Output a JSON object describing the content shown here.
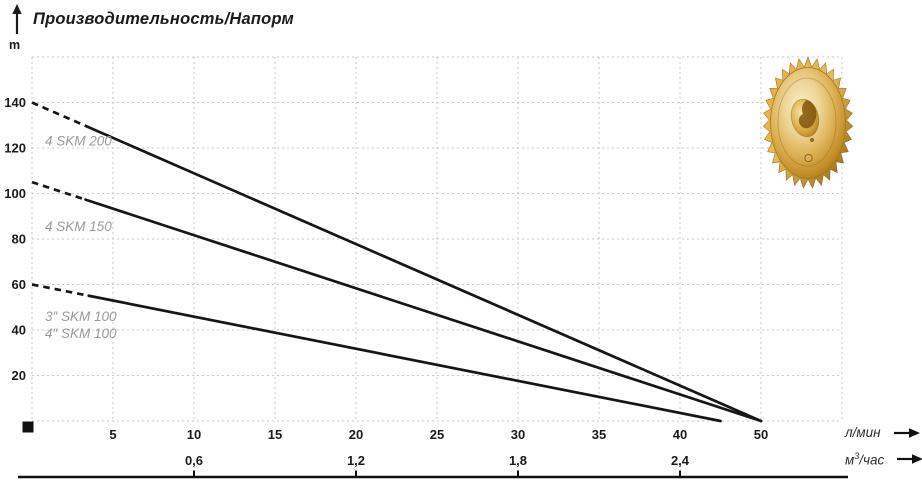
{
  "header": {
    "title": "Производительность/Напорм",
    "y_axis_unit": "m"
  },
  "units": {
    "flow_primary": "л/мин",
    "flow_secondary_base": "м",
    "flow_secondary_sup": "3",
    "flow_secondary_rest": "/час"
  },
  "chart_data": {
    "type": "line",
    "title": "Производительность/Напорм",
    "x_axis": {
      "label_primary": "л/мин",
      "label_secondary": "м³/час",
      "ticks_l_min": [
        5,
        10,
        15,
        20,
        25,
        30,
        35,
        40,
        50
      ],
      "ticks_m3_h": [
        {
          "label": "0,6",
          "at_l_min": 10
        },
        {
          "label": "1,2",
          "at_l_min": 20
        },
        {
          "label": "1,8",
          "at_l_min": 30
        },
        {
          "label": "2,4",
          "at_l_min": 40
        }
      ],
      "grid_step_l_min": 5
    },
    "y_axis": {
      "unit": "m",
      "ticks": [
        20,
        40,
        60,
        80,
        100,
        120,
        140
      ],
      "ylim": [
        0,
        160
      ],
      "grid_step": 20
    },
    "grid": "dotted",
    "legend_position": "inline-labels",
    "series": [
      {
        "name": "4 SKM 200",
        "points_l_min_m": [
          [
            0,
            140
          ],
          [
            50,
            0
          ]
        ],
        "dashed_until_l_min": 3.5
      },
      {
        "name": "4 SKM 150",
        "points_l_min_m": [
          [
            0,
            105
          ],
          [
            50,
            0
          ]
        ],
        "dashed_until_l_min": 3.3
      },
      {
        "name": "SKM 100",
        "points_l_min_m": [
          [
            0,
            60
          ],
          [
            45,
            0
          ]
        ],
        "dashed_until_l_min": 3.5
      }
    ],
    "curve_labels": [
      {
        "text": "4 SKM 200",
        "q_l_min": 0.8,
        "head_m": 123
      },
      {
        "text": "4 SKM 150",
        "q_l_min": 0.8,
        "head_m": 85.5
      },
      {
        "text": "3″ SKM 100",
        "q_l_min": 0.8,
        "head_m": 46
      },
      {
        "text": "4″ SKM 100",
        "q_l_min": 0.8,
        "head_m": 38.5
      }
    ]
  },
  "colors": {
    "curve": "#161616",
    "grid": "#c9c9c9",
    "axis_text": "#1b1b1b",
    "curve_label": "#9a9a9a",
    "scale_line": "#111111",
    "gold_light": "#faf0cd",
    "gold_mid": "#e0b357",
    "gold_dark": "#96650f"
  },
  "icons": {
    "impeller": "pump-impeller-image",
    "axis_arrow_up": "arrow-up-icon",
    "axis_arrow_right": "arrow-right-icon"
  }
}
